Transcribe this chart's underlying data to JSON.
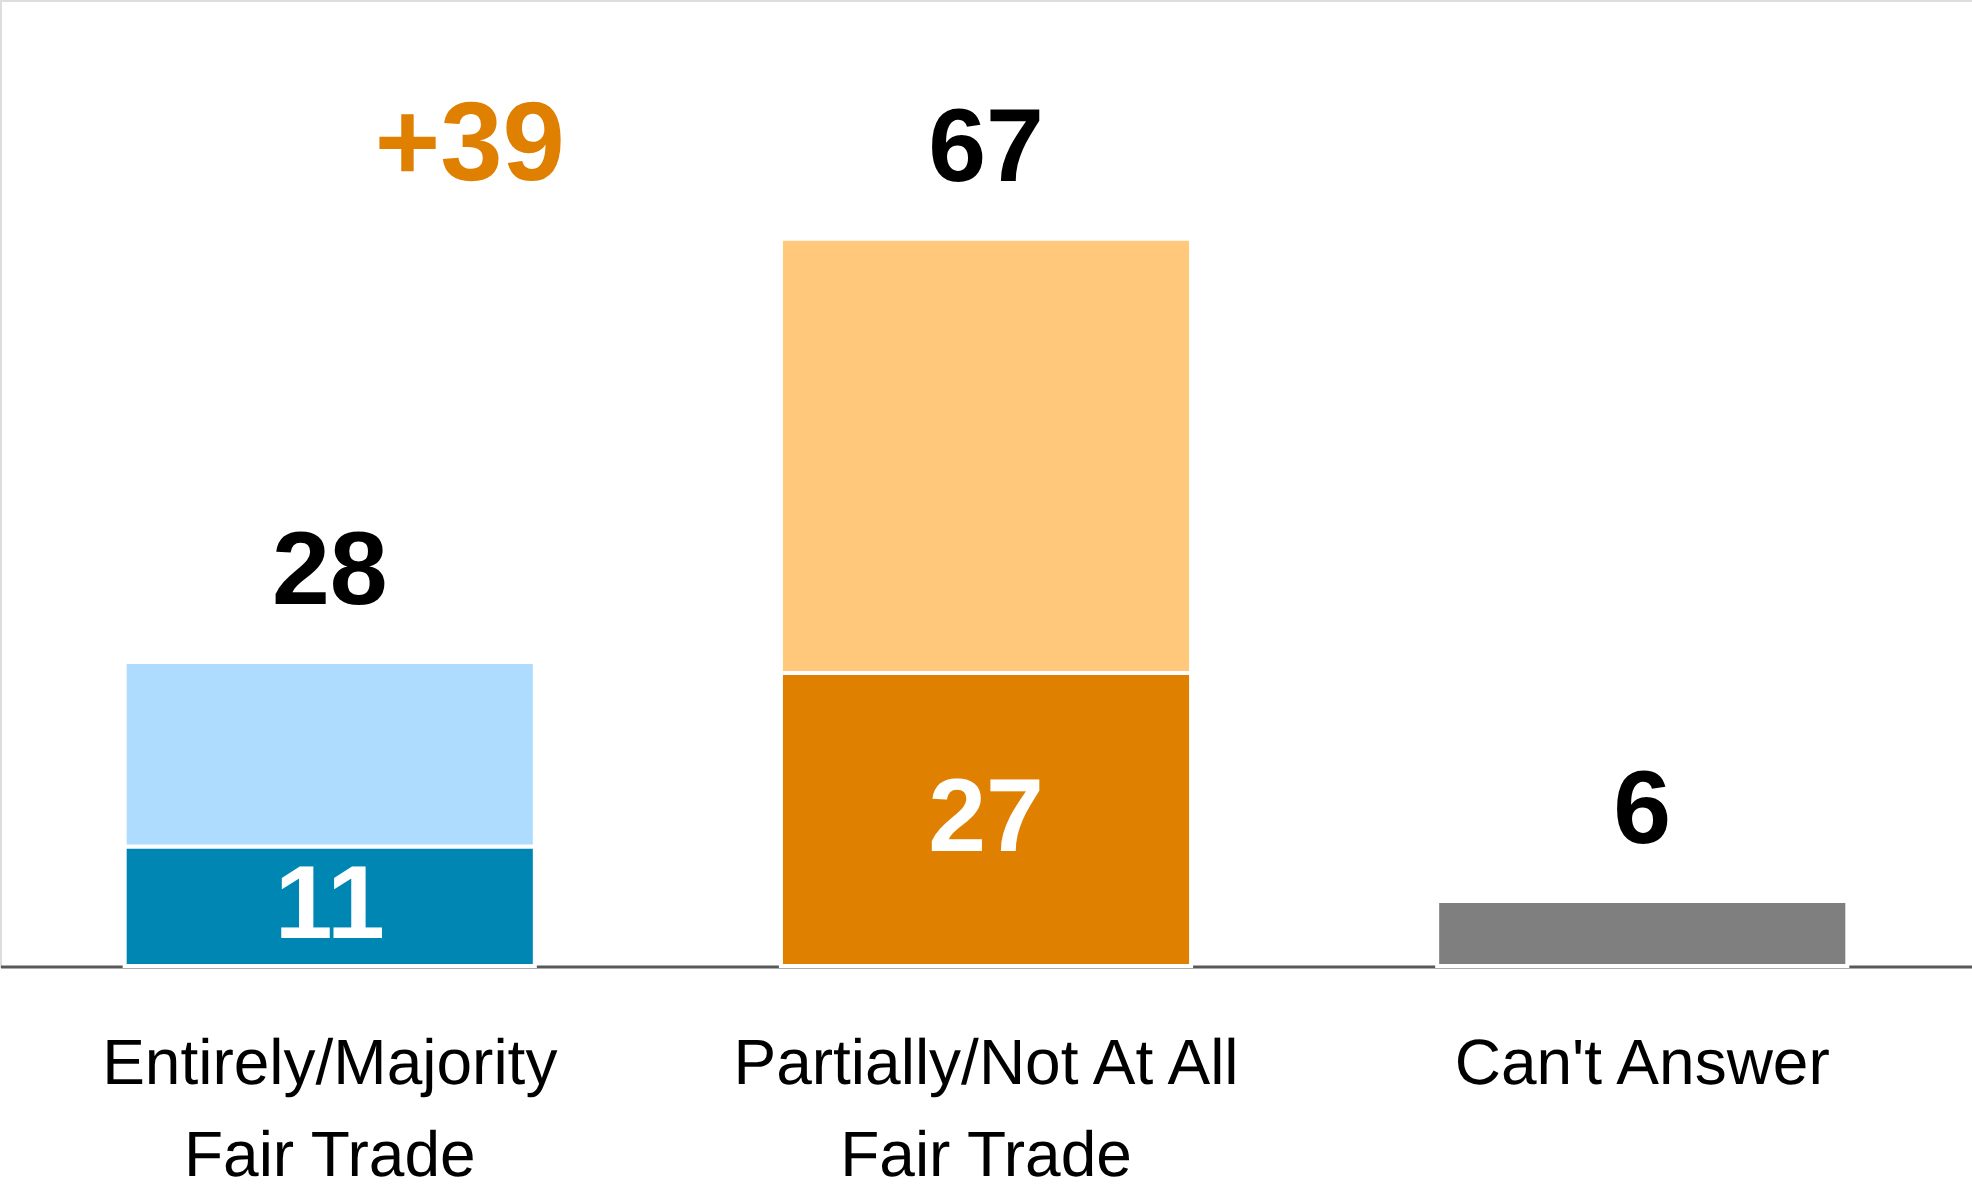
{
  "chart_data": {
    "type": "bar",
    "stacked": true,
    "categories": [
      "Entirely/Majority Fair Trade",
      "Partially/Not At All Fair Trade",
      "Can't Answer"
    ],
    "series": [
      {
        "colors": [
          "#0086b3",
          "#e08000",
          "#7f7f7f"
        ],
        "values": [
          11,
          27,
          6
        ],
        "value_labels": [
          "11",
          "27",
          null
        ]
      },
      {
        "colors": [
          "#aedcff",
          "#ffc87a",
          "#ffffff"
        ],
        "values": [
          17,
          40,
          null
        ]
      }
    ],
    "totals": [
      "28",
      "67",
      "6"
    ],
    "ylim": [
      0,
      89
    ],
    "annotations": [
      "+39"
    ]
  }
}
